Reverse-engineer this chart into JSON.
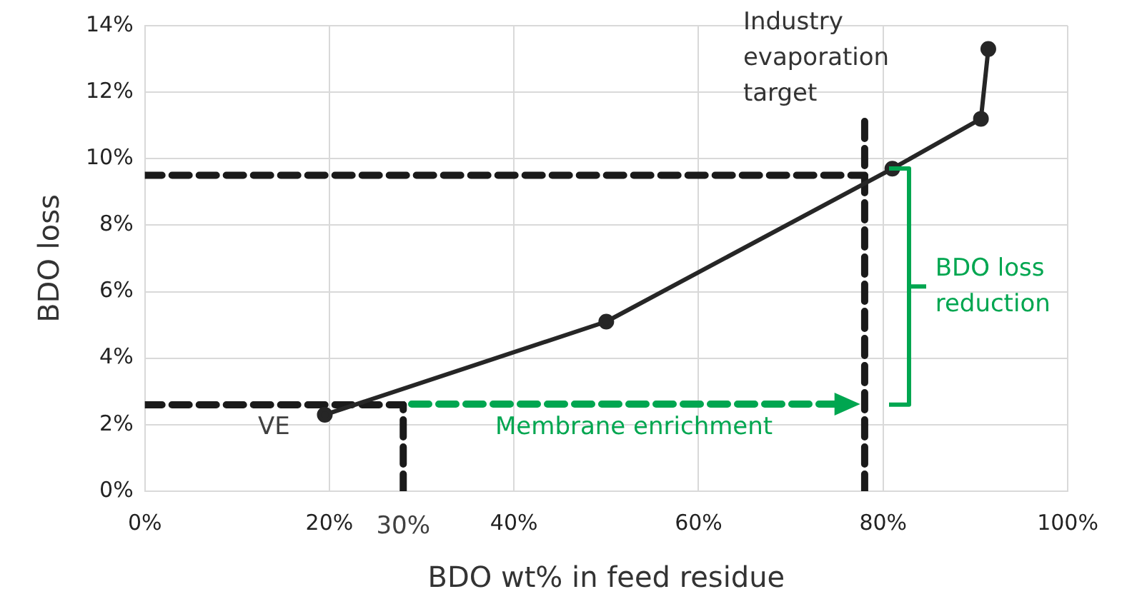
{
  "chart_data": {
    "type": "line",
    "xlabel": "BDO wt% in feed residue",
    "ylabel": "BDO loss",
    "xlim": [
      0,
      100
    ],
    "ylim": [
      0,
      14
    ],
    "xticks": [
      {
        "value": 0,
        "label": "0%"
      },
      {
        "value": 20,
        "label": "20%"
      },
      {
        "value": 40,
        "label": "40%"
      },
      {
        "value": 60,
        "label": "60%"
      },
      {
        "value": 80,
        "label": "80%"
      },
      {
        "value": 100,
        "label": "100%"
      }
    ],
    "yticks": [
      {
        "value": 0,
        "label": "0%"
      },
      {
        "value": 2,
        "label": "2%"
      },
      {
        "value": 4,
        "label": "4%"
      },
      {
        "value": 6,
        "label": "6%"
      },
      {
        "value": 8,
        "label": "8%"
      },
      {
        "value": 10,
        "label": "10%"
      },
      {
        "value": 12,
        "label": "12%"
      },
      {
        "value": 14,
        "label": "14%"
      }
    ],
    "grid": true,
    "legend": false,
    "series": [
      {
        "color": "#262626",
        "x": [
          19.5,
          50,
          81,
          90.6,
          91.4
        ],
        "values": [
          2.3,
          5.1,
          9.7,
          11.2,
          13.3
        ],
        "marker": "circle",
        "line_style": "solid"
      },
      {
        "color": "#1a1a1a",
        "x": [
          0,
          78
        ],
        "values": [
          9.5,
          9.5
        ],
        "marker": "none",
        "line_style": "dashed"
      },
      {
        "color": "#1a1a1a",
        "x": [
          0,
          28
        ],
        "values": [
          2.6,
          2.6
        ],
        "marker": "none",
        "line_style": "dashed"
      },
      {
        "color": "#1a1a1a",
        "x": [
          28,
          28
        ],
        "values": [
          0,
          2.6
        ],
        "marker": "none",
        "line_style": "dashed"
      },
      {
        "color": "#1a1a1a",
        "x": [
          78,
          78
        ],
        "values": [
          0,
          11.3
        ],
        "marker": "none",
        "line_style": "dashed"
      }
    ],
    "annotations": [
      "Industry\nevaporation\ntarget",
      "BDO loss\nreduction",
      "Membrane enrichment",
      "VE",
      "30%"
    ]
  }
}
